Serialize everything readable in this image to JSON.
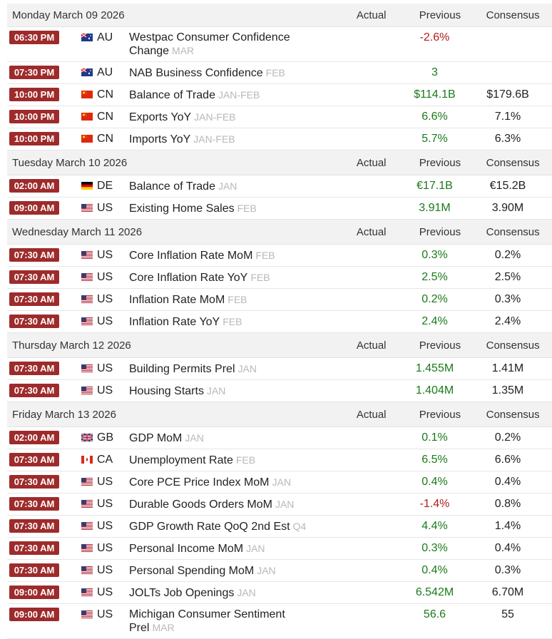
{
  "columns": [
    "Actual",
    "Previous",
    "Consensus"
  ],
  "days": [
    {
      "date": "Monday March 09 2026",
      "events": [
        {
          "time": "06:30 PM",
          "country": "AU",
          "event": "Westpac Consumer Confidence Change",
          "period": "MAR",
          "previous": "-2.6%"
        },
        {
          "time": "07:30 PM",
          "country": "AU",
          "event": "NAB Business Confidence",
          "period": "FEB",
          "previous": "3"
        },
        {
          "time": "10:00 PM",
          "country": "CN",
          "event": "Balance of Trade",
          "period": "JAN-FEB",
          "previous": "$114.1B",
          "consensus": "$179.6B"
        },
        {
          "time": "10:00 PM",
          "country": "CN",
          "event": "Exports YoY",
          "period": "JAN-FEB",
          "previous": "6.6%",
          "consensus": "7.1%"
        },
        {
          "time": "10:00 PM",
          "country": "CN",
          "event": "Imports YoY",
          "period": "JAN-FEB",
          "previous": "5.7%",
          "consensus": "6.3%"
        }
      ]
    },
    {
      "date": "Tuesday March 10 2026",
      "events": [
        {
          "time": "02:00 AM",
          "country": "DE",
          "event": "Balance of Trade",
          "period": "JAN",
          "previous": "€17.1B",
          "consensus": "€15.2B"
        },
        {
          "time": "09:00 AM",
          "country": "US",
          "event": "Existing Home Sales",
          "period": "FEB",
          "previous": "3.91M",
          "consensus": "3.90M"
        }
      ]
    },
    {
      "date": "Wednesday March 11 2026",
      "events": [
        {
          "time": "07:30 AM",
          "country": "US",
          "event": "Core Inflation Rate MoM",
          "period": "FEB",
          "previous": "0.3%",
          "consensus": "0.2%"
        },
        {
          "time": "07:30 AM",
          "country": "US",
          "event": "Core Inflation Rate YoY",
          "period": "FEB",
          "previous": "2.5%",
          "consensus": "2.5%"
        },
        {
          "time": "07:30 AM",
          "country": "US",
          "event": "Inflation Rate MoM",
          "period": "FEB",
          "previous": "0.2%",
          "consensus": "0.3%"
        },
        {
          "time": "07:30 AM",
          "country": "US",
          "event": "Inflation Rate YoY",
          "period": "FEB",
          "previous": "2.4%",
          "consensus": "2.4%"
        }
      ]
    },
    {
      "date": "Thursday March 12 2026",
      "events": [
        {
          "time": "07:30 AM",
          "country": "US",
          "event": "Building Permits Prel",
          "period": "JAN",
          "previous": "1.455M",
          "consensus": "1.41M"
        },
        {
          "time": "07:30 AM",
          "country": "US",
          "event": "Housing Starts",
          "period": "JAN",
          "previous": "1.404M",
          "consensus": "1.35M"
        }
      ]
    },
    {
      "date": "Friday March 13 2026",
      "events": [
        {
          "time": "02:00 AM",
          "country": "GB",
          "event": "GDP MoM",
          "period": "JAN",
          "previous": "0.1%",
          "consensus": "0.2%"
        },
        {
          "time": "07:30 AM",
          "country": "CA",
          "event": "Unemployment Rate",
          "period": "FEB",
          "previous": "6.5%",
          "consensus": "6.6%"
        },
        {
          "time": "07:30 AM",
          "country": "US",
          "event": "Core PCE Price Index MoM",
          "period": "JAN",
          "previous": "0.4%",
          "consensus": "0.4%"
        },
        {
          "time": "07:30 AM",
          "country": "US",
          "event": "Durable Goods Orders MoM",
          "period": "JAN",
          "previous": "-1.4%",
          "consensus": "0.8%"
        },
        {
          "time": "07:30 AM",
          "country": "US",
          "event": "GDP Growth Rate QoQ 2nd Est",
          "period": "Q4",
          "previous": "4.4%",
          "consensus": "1.4%"
        },
        {
          "time": "07:30 AM",
          "country": "US",
          "event": "Personal Income MoM",
          "period": "JAN",
          "previous": "0.3%",
          "consensus": "0.4%"
        },
        {
          "time": "07:30 AM",
          "country": "US",
          "event": "Personal Spending MoM",
          "period": "JAN",
          "previous": "0.4%",
          "consensus": "0.3%"
        },
        {
          "time": "09:00 AM",
          "country": "US",
          "event": "JOLTs Job Openings",
          "period": "JAN",
          "previous": "6.542M",
          "consensus": "6.70M"
        },
        {
          "time": "09:00 AM",
          "country": "US",
          "event": "Michigan Consumer Sentiment Prel",
          "period": "MAR",
          "previous": "56.6",
          "consensus": "55"
        }
      ]
    }
  ]
}
